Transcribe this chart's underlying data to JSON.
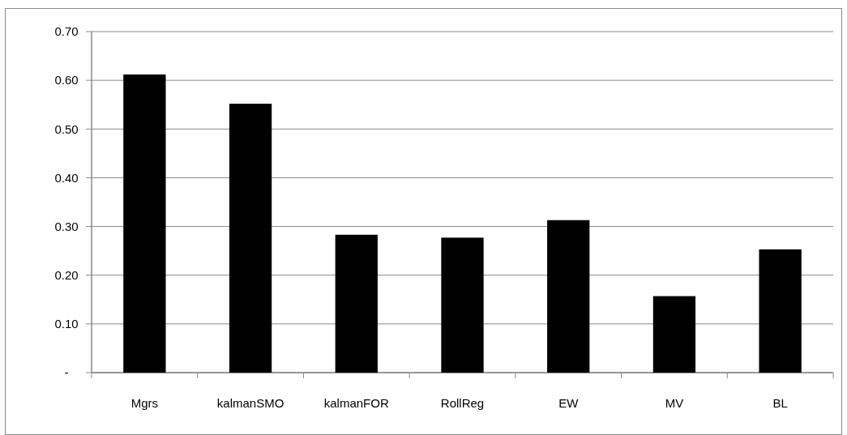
{
  "chart_data": {
    "type": "bar",
    "categories": [
      "Mgrs",
      "kalmanSMO",
      "kalmanFOR",
      "RollReg",
      "EW",
      "MV",
      "BL"
    ],
    "values": [
      0.612,
      0.552,
      0.283,
      0.277,
      0.313,
      0.157,
      0.253
    ],
    "color": "#000000",
    "ylim": [
      0,
      0.7
    ],
    "yticks": [
      {
        "value": 0,
        "label": "-"
      },
      {
        "value": 0.1,
        "label": "0.10"
      },
      {
        "value": 0.2,
        "label": "0.20"
      },
      {
        "value": 0.3,
        "label": "0.30"
      },
      {
        "value": 0.4,
        "label": "0.40"
      },
      {
        "value": 0.5,
        "label": "0.50"
      },
      {
        "value": 0.6,
        "label": "0.60"
      },
      {
        "value": 0.7,
        "label": "0.70"
      }
    ],
    "grid": "y"
  }
}
